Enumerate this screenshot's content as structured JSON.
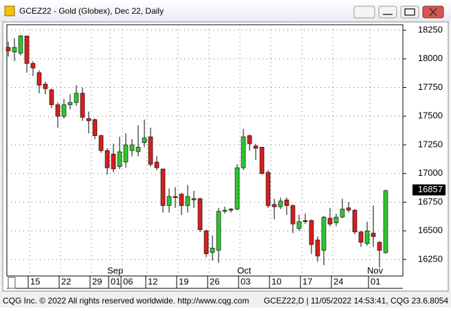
{
  "window_title": "GCEZ22 - Gold (Globex), Dec 22, Daily",
  "footer_left": "CQG Inc. © 2022 All rights reserved worldwide. http://www.cqg.com",
  "footer_right": "GCEZ22,D | 11/05/2022 14:53:41, CQG 23.6.8054",
  "chart_data": {
    "type": "candlestick",
    "categories": [
      null,
      null,
      null,
      null,
      "15",
      null,
      null,
      null,
      null,
      "22",
      null,
      null,
      null,
      null,
      "29",
      null,
      null,
      "01",
      null,
      "06",
      null,
      null,
      null,
      "12",
      null,
      null,
      null,
      null,
      "19",
      null,
      null,
      null,
      null,
      "26",
      null,
      null,
      null,
      null,
      "03",
      null,
      null,
      null,
      null,
      "10",
      null,
      null,
      null,
      null,
      "17",
      null,
      null,
      null,
      null,
      "24",
      null,
      null,
      null,
      null,
      null,
      "01",
      null,
      null
    ],
    "months": [
      null,
      null,
      null,
      null,
      null,
      null,
      null,
      null,
      null,
      null,
      null,
      null,
      null,
      null,
      null,
      null,
      null,
      "Sep",
      null,
      null,
      null,
      null,
      null,
      null,
      null,
      null,
      null,
      null,
      null,
      null,
      null,
      null,
      null,
      null,
      null,
      null,
      null,
      null,
      "Oct",
      null,
      null,
      null,
      null,
      null,
      null,
      null,
      null,
      null,
      null,
      null,
      null,
      null,
      null,
      null,
      null,
      null,
      null,
      null,
      null,
      "Nov",
      null,
      null
    ],
    "open": [
      18100,
      18060,
      18050,
      18200,
      17960,
      17880,
      17780,
      17730,
      17600,
      17500,
      17600,
      17620,
      17700,
      17480,
      17470,
      17330,
      17200,
      17170,
      17060,
      17100,
      17200,
      17190,
      17270,
      17320,
      17100,
      17040,
      16720,
      16800,
      16820,
      16720,
      16780,
      16780,
      16500,
      16310,
      16330,
      16670,
      16690,
      16690,
      17050,
      17330,
      17240,
      17230,
      17010,
      16730,
      16710,
      16770,
      16720,
      16520,
      16590,
      16590,
      16420,
      16330,
      16610,
      16570,
      16620,
      16700,
      16680,
      16490,
      16390,
      16480,
      16400,
      16310
    ],
    "high": [
      18150,
      18180,
      18210,
      18200,
      17980,
      17900,
      17800,
      17740,
      17620,
      17650,
      17690,
      17770,
      17750,
      17540,
      17480,
      17340,
      17220,
      17260,
      17320,
      17350,
      17300,
      17420,
      17470,
      17400,
      17150,
      17040,
      16870,
      16880,
      16830,
      16900,
      16850,
      16790,
      16510,
      16460,
      16700,
      16710,
      16700,
      17080,
      17390,
      17340,
      17260,
      17230,
      17030,
      16780,
      16790,
      16790,
      16730,
      16640,
      16650,
      16600,
      16450,
      16630,
      16700,
      16650,
      16780,
      16750,
      16690,
      16500,
      16580,
      16720,
      16410,
      16860
    ],
    "low": [
      18020,
      17980,
      18030,
      17880,
      17850,
      17700,
      17690,
      17570,
      17400,
      17480,
      17560,
      17590,
      17460,
      17350,
      17300,
      17180,
      16990,
      17010,
      17040,
      17050,
      17150,
      17150,
      17230,
      17060,
      17030,
      16660,
      16660,
      16700,
      16640,
      16660,
      16700,
      16490,
      16270,
      16240,
      16220,
      16650,
      16660,
      16680,
      17030,
      17200,
      17120,
      16990,
      16700,
      16600,
      16690,
      16640,
      16480,
      16500,
      16560,
      16300,
      16230,
      16200,
      16540,
      16540,
      16610,
      16660,
      16470,
      16360,
      16370,
      16360,
      16180,
      16300
    ],
    "close": [
      18070,
      18100,
      18200,
      17960,
      17920,
      17770,
      17740,
      17600,
      17500,
      17600,
      17620,
      17700,
      17490,
      17460,
      17330,
      17200,
      17050,
      17040,
      17190,
      17250,
      17250,
      17230,
      17310,
      17080,
      17050,
      16720,
      16800,
      16790,
      16720,
      16800,
      16770,
      16510,
      16300,
      16350,
      16670,
      16680,
      16680,
      17050,
      17320,
      17260,
      17220,
      17000,
      16720,
      16710,
      16760,
      16720,
      16560,
      16580,
      16580,
      16380,
      16280,
      16620,
      16560,
      16620,
      16690,
      16680,
      16490,
      16400,
      16500,
      16450,
      16330,
      16850
    ],
    "up_color": "#2ec52e",
    "down_color": "#d42020",
    "last_value": 16857,
    "ylim": [
      16106,
      18298
    ],
    "yticks": [
      16250,
      16500,
      16750,
      17000,
      17250,
      17500,
      17750,
      18000,
      18250
    ],
    "grid": true
  }
}
